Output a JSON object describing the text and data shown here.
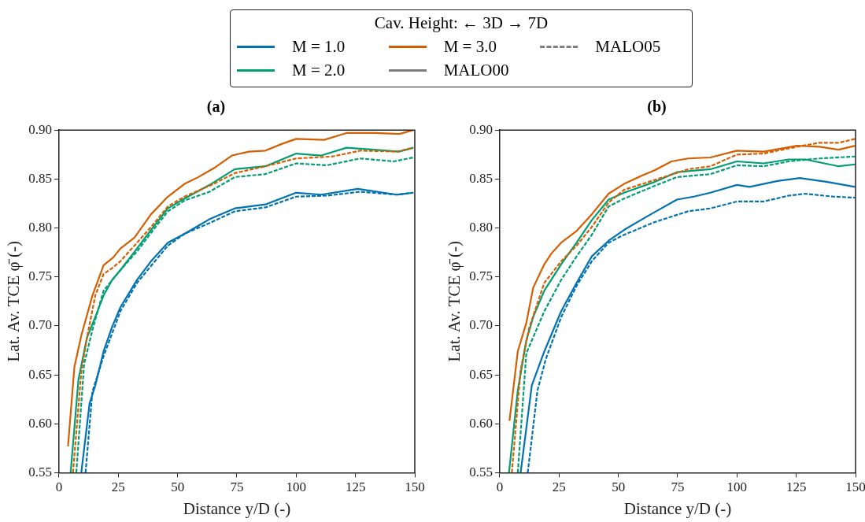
{
  "chart_data": [
    {
      "type": "line",
      "title": "(a)",
      "xlabel": "Distance y/D (-)",
      "ylabel": "Lat. Av. TCE φ̄ (-)",
      "legend": "top",
      "legend_title": "Cav. Height: ← 3D    → 7D",
      "grid": false,
      "xlim": [
        0,
        150
      ],
      "ylim": [
        0.55,
        0.9
      ],
      "xticks": [
        0,
        25,
        50,
        75,
        100,
        125,
        150
      ],
      "yticks": [
        {
          "value": 0.55,
          "label": "0.55"
        },
        {
          "value": 0.6,
          "label": "0.60"
        },
        {
          "value": 0.65,
          "label": "0.65"
        },
        {
          "value": 0.7,
          "label": "0.70"
        },
        {
          "value": 0.75,
          "label": "0.75"
        },
        {
          "value": 0.8,
          "label": "0.80"
        },
        {
          "value": 0.85,
          "label": "0.85"
        },
        {
          "value": 0.9,
          "label": "0.90"
        }
      ],
      "series": [
        {
          "name": "M = 1.0",
          "color": "#0072b2",
          "line_style": "solid",
          "x": [
            9.4,
            12.9,
            15.3,
            18.8,
            22.4,
            25.9,
            32.9,
            38.8,
            45.9,
            52.9,
            63.5,
            74.1,
            87,
            100,
            110.6,
            125.9,
            142.4,
            149.4
          ],
          "values": [
            0.55,
            0.621,
            0.639,
            0.674,
            0.699,
            0.719,
            0.747,
            0.766,
            0.785,
            0.794,
            0.809,
            0.82,
            0.824,
            0.836,
            0.834,
            0.84,
            0.834,
            0.836
          ]
        },
        {
          "name": "M = 2.0",
          "color": "#009e73",
          "line_style": "solid",
          "x": [
            4.9,
            8.2,
            11.8,
            15.3,
            18.8,
            22.4,
            25.9,
            32.9,
            38.8,
            45.9,
            52.9,
            63.5,
            74.1,
            87,
            100,
            110.6,
            121.2,
            132.9,
            143.5,
            149.4
          ],
          "values": [
            0.55,
            0.645,
            0.688,
            0.709,
            0.731,
            0.747,
            0.757,
            0.779,
            0.798,
            0.82,
            0.83,
            0.844,
            0.86,
            0.863,
            0.876,
            0.874,
            0.882,
            0.88,
            0.878,
            0.882
          ]
        },
        {
          "name": "M = 3.0",
          "color": "#d55e00",
          "line_style": "solid",
          "x": [
            3.8,
            6.5,
            9.4,
            14.1,
            18.8,
            22.9,
            25.9,
            31.8,
            38.8,
            45.9,
            52.9,
            58.8,
            65.9,
            72.9,
            80,
            87,
            94.1,
            100,
            111.8,
            121.2,
            133,
            143.5,
            149.4
          ],
          "values": [
            0.577,
            0.658,
            0.69,
            0.731,
            0.762,
            0.77,
            0.779,
            0.79,
            0.814,
            0.832,
            0.845,
            0.852,
            0.862,
            0.874,
            0.878,
            0.879,
            0.886,
            0.891,
            0.89,
            0.897,
            0.897,
            0.896,
            0.9
          ]
        },
        {
          "name": "MALO00",
          "color": "#7f7f7f",
          "line_style": "solid"
        },
        {
          "name": "MALO05",
          "color": "#7f7f7f",
          "line_style": "dashed"
        },
        {
          "color": "#0072b2",
          "line_style": "dashed",
          "x": [
            11.2,
            14.1,
            18.8,
            25.9,
            32.9,
            45.9,
            52.9,
            63.5,
            74.1,
            87,
            100,
            112.9,
            127,
            142.4,
            149.4
          ],
          "values": [
            0.55,
            0.633,
            0.669,
            0.715,
            0.744,
            0.782,
            0.794,
            0.805,
            0.817,
            0.821,
            0.832,
            0.833,
            0.837,
            0.834,
            0.836
          ]
        },
        {
          "color": "#009e73",
          "line_style": "dashed",
          "x": [
            7.3,
            10.6,
            14.1,
            18.8,
            25.9,
            32.9,
            38.8,
            45.9,
            52.9,
            63.5,
            74.1,
            87,
            100,
            112.9,
            127,
            141.2,
            149.4
          ],
          "values": [
            0.55,
            0.661,
            0.696,
            0.736,
            0.757,
            0.776,
            0.795,
            0.817,
            0.828,
            0.837,
            0.852,
            0.855,
            0.866,
            0.864,
            0.871,
            0.868,
            0.872
          ]
        },
        {
          "color": "#d55e00",
          "line_style": "dashed",
          "x": [
            5.9,
            9.4,
            11.8,
            15.3,
            18.8,
            22.4,
            25.9,
            32.9,
            38.8,
            45.9,
            52.9,
            63.5,
            74.1,
            87,
            100,
            115.3,
            127,
            142.4,
            149.4
          ],
          "values": [
            0.55,
            0.653,
            0.688,
            0.731,
            0.753,
            0.759,
            0.766,
            0.785,
            0.801,
            0.822,
            0.832,
            0.843,
            0.856,
            0.863,
            0.871,
            0.873,
            0.879,
            0.878,
            0.882
          ]
        }
      ]
    },
    {
      "type": "line",
      "title": "(b)",
      "xlabel": "Distance y/D (-)",
      "ylabel": "Lat. Av. TCE φ̄ (-)",
      "grid": false,
      "xlim": [
        0,
        150
      ],
      "ylim": [
        0.55,
        0.9
      ],
      "xticks": [
        0,
        25,
        50,
        75,
        100,
        125,
        150
      ],
      "yticks": [
        {
          "value": 0.55,
          "label": "0.55"
        },
        {
          "value": 0.6,
          "label": "0.60"
        },
        {
          "value": 0.65,
          "label": "0.65"
        },
        {
          "value": 0.7,
          "label": "0.70"
        },
        {
          "value": 0.75,
          "label": "0.75"
        },
        {
          "value": 0.8,
          "label": "0.80"
        },
        {
          "value": 0.85,
          "label": "0.85"
        },
        {
          "value": 0.9,
          "label": "0.90"
        }
      ],
      "series": [
        {
          "color": "#0072b2",
          "line_style": "solid",
          "x": [
            8.8,
            13.5,
            18.8,
            25.9,
            32.4,
            38.8,
            45.9,
            52.4,
            59.4,
            65.9,
            74.7,
            81.8,
            88.8,
            100,
            105.3,
            117.1,
            126.5,
            138.2,
            149.8
          ],
          "values": [
            0.55,
            0.639,
            0.674,
            0.715,
            0.744,
            0.771,
            0.787,
            0.798,
            0.808,
            0.817,
            0.829,
            0.832,
            0.836,
            0.844,
            0.842,
            0.848,
            0.851,
            0.847,
            0.842
          ]
        },
        {
          "color": "#009e73",
          "line_style": "solid",
          "x": [
            3.9,
            7.6,
            11.2,
            14.1,
            18.8,
            25.9,
            32.4,
            38.8,
            45.9,
            52.4,
            65.3,
            74.7,
            88.8,
            100,
            111.2,
            121.8,
            128.8,
            142.9,
            149.8
          ],
          "values": [
            0.55,
            0.634,
            0.685,
            0.709,
            0.736,
            0.763,
            0.785,
            0.808,
            0.829,
            0.836,
            0.847,
            0.857,
            0.86,
            0.868,
            0.866,
            0.87,
            0.87,
            0.863,
            0.865
          ]
        },
        {
          "color": "#d55e00",
          "line_style": "solid",
          "x": [
            4.1,
            7.6,
            11.2,
            14.1,
            18.8,
            21.8,
            25.9,
            32.4,
            38.8,
            45.9,
            52.4,
            59.4,
            65.3,
            72.4,
            79.4,
            88.8,
            100,
            111.2,
            125.3,
            134.7,
            142.9,
            149.8
          ],
          "values": [
            0.603,
            0.674,
            0.703,
            0.739,
            0.763,
            0.774,
            0.785,
            0.797,
            0.814,
            0.835,
            0.845,
            0.853,
            0.859,
            0.868,
            0.871,
            0.872,
            0.879,
            0.878,
            0.884,
            0.883,
            0.88,
            0.884
          ]
        },
        {
          "color": "#0072b2",
          "line_style": "dashed",
          "x": [
            11.8,
            15.9,
            19.4,
            25.9,
            32.4,
            38.8,
            45.9,
            52.4,
            65.3,
            79.4,
            88.8,
            100,
            111.2,
            121.8,
            128.8,
            140.6,
            149.8
          ],
          "values": [
            0.55,
            0.634,
            0.666,
            0.709,
            0.741,
            0.766,
            0.785,
            0.793,
            0.806,
            0.817,
            0.82,
            0.827,
            0.827,
            0.833,
            0.835,
            0.832,
            0.831
          ]
        },
        {
          "color": "#009e73",
          "line_style": "dashed",
          "x": [
            7.6,
            11.2,
            18.8,
            25.9,
            32.4,
            38.8,
            45.9,
            52.4,
            65.3,
            74.7,
            88.8,
            100,
            111.2,
            121.8,
            134.7,
            149.8
          ],
          "values": [
            0.55,
            0.672,
            0.715,
            0.747,
            0.771,
            0.793,
            0.822,
            0.83,
            0.843,
            0.852,
            0.855,
            0.864,
            0.863,
            0.868,
            0.871,
            0.873
          ]
        },
        {
          "color": "#d55e00",
          "line_style": "dashed",
          "x": [
            5.1,
            8.8,
            12.4,
            18.8,
            25.9,
            32.4,
            38.8,
            45.9,
            52.4,
            65.3,
            79.4,
            88.8,
            100,
            111.2,
            125.3,
            134.7,
            142.9,
            149.8
          ],
          "values": [
            0.55,
            0.655,
            0.698,
            0.744,
            0.766,
            0.782,
            0.801,
            0.826,
            0.839,
            0.849,
            0.86,
            0.863,
            0.875,
            0.876,
            0.883,
            0.887,
            0.887,
            0.891
          ]
        }
      ]
    }
  ]
}
